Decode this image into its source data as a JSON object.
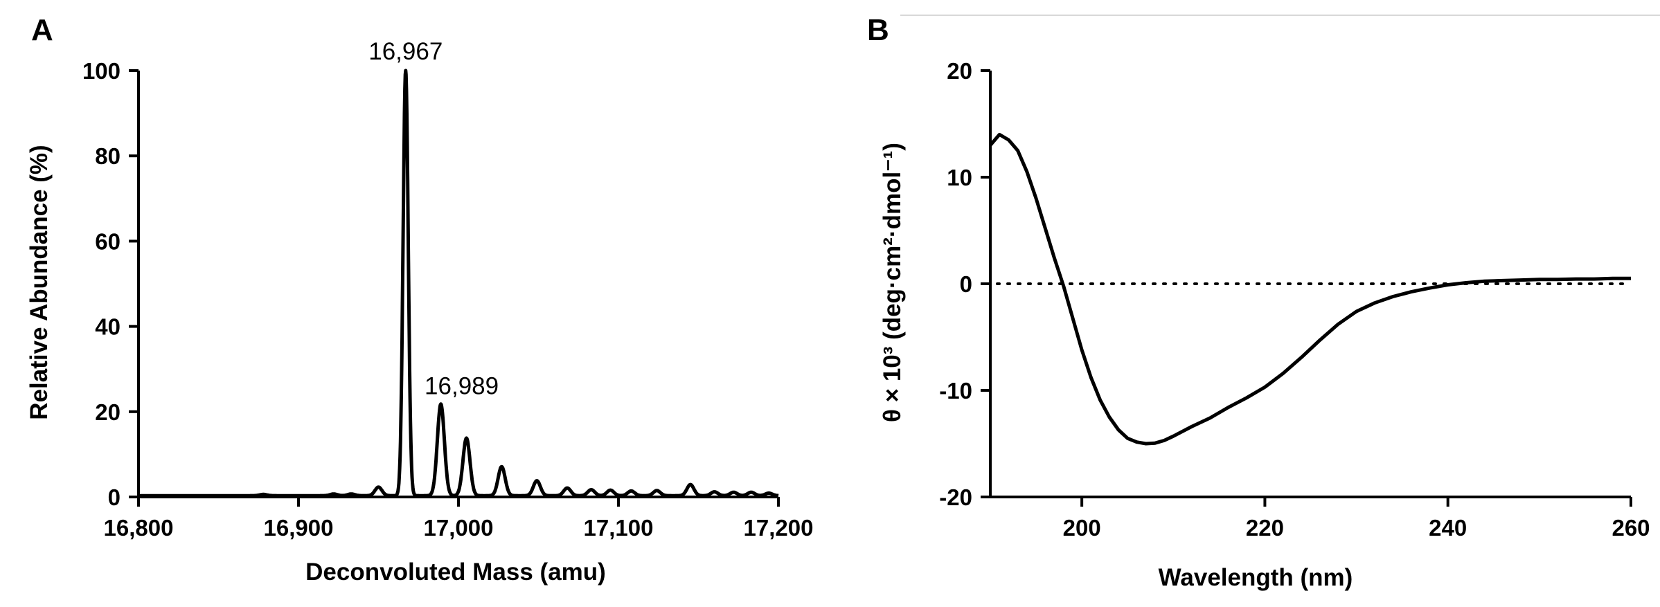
{
  "chart_data": [
    {
      "type": "line",
      "panel": "A",
      "title": "",
      "xlabel": "Deconvoluted Mass (amu)",
      "ylabel": "Relative Abundance (%)",
      "xlim": [
        16800,
        17200
      ],
      "ylim": [
        0,
        100
      ],
      "x_ticks": [
        16800,
        16900,
        17000,
        17100,
        17200
      ],
      "x_tick_labels": [
        "16,800",
        "16,900",
        "17,000",
        "17,100",
        "17,200"
      ],
      "y_ticks": [
        0,
        20,
        40,
        60,
        80,
        100
      ],
      "y_tick_labels": [
        "0",
        "20",
        "40",
        "60",
        "80",
        "100"
      ],
      "grid": false,
      "annotations": [
        {
          "text": "16,967",
          "x": 16967,
          "y": 100
        },
        {
          "text": "16,989",
          "x": 16989,
          "y": 21.5
        }
      ],
      "series": [
        {
          "name": "mass spectrum",
          "baseline": 0.3,
          "peaks": [
            {
              "mass": 16878,
              "height": 0.3
            },
            {
              "mass": 16922,
              "height": 0.4
            },
            {
              "mass": 16933,
              "height": 0.4
            },
            {
              "mass": 16950,
              "height": 2
            },
            {
              "mass": 16967,
              "height": 100
            },
            {
              "mass": 16989,
              "height": 21.5
            },
            {
              "mass": 17005,
              "height": 13.5
            },
            {
              "mass": 17027,
              "height": 6.8
            },
            {
              "mass": 17049,
              "height": 3.5
            },
            {
              "mass": 17068,
              "height": 1.8
            },
            {
              "mass": 17083,
              "height": 1.4
            },
            {
              "mass": 17095,
              "height": 1.3
            },
            {
              "mass": 17108,
              "height": 1.1
            },
            {
              "mass": 17124,
              "height": 1.2
            },
            {
              "mass": 17145,
              "height": 2.6
            },
            {
              "mass": 17160,
              "height": 0.9
            },
            {
              "mass": 17172,
              "height": 0.8
            },
            {
              "mass": 17183,
              "height": 0.8
            },
            {
              "mass": 17194,
              "height": 0.6
            }
          ]
        }
      ]
    },
    {
      "type": "line",
      "panel": "B",
      "title": "",
      "xlabel": "Wavelength (nm)",
      "ylabel": "θ × 10³ (deg·cm²·dmol⁻¹)",
      "xlim": [
        190,
        260
      ],
      "ylim": [
        -20,
        20
      ],
      "x_ticks": [
        200,
        220,
        240,
        260
      ],
      "x_tick_labels": [
        "200",
        "220",
        "240",
        "260"
      ],
      "y_ticks": [
        -20,
        -10,
        0,
        10,
        20
      ],
      "y_tick_labels": [
        "-20",
        "-10",
        "0",
        "10",
        "20"
      ],
      "grid": false,
      "reference_line": {
        "y": 0,
        "style": "dotted"
      },
      "series": [
        {
          "name": "CD spectrum",
          "x": [
            190,
            191,
            192,
            193,
            194,
            195,
            196,
            197,
            198,
            199,
            200,
            201,
            202,
            203,
            204,
            205,
            206,
            207,
            208,
            209,
            210,
            212,
            214,
            216,
            218,
            220,
            222,
            224,
            226,
            228,
            230,
            232,
            234,
            236,
            238,
            240,
            242,
            244,
            246,
            248,
            250,
            252,
            254,
            256,
            258,
            260
          ],
          "y": [
            13.0,
            14.0,
            13.5,
            12.5,
            10.5,
            8.0,
            5.2,
            2.4,
            -0.2,
            -3.2,
            -6.2,
            -8.8,
            -10.9,
            -12.5,
            -13.7,
            -14.5,
            -14.85,
            -15.0,
            -14.95,
            -14.7,
            -14.3,
            -13.4,
            -12.6,
            -11.6,
            -10.7,
            -9.7,
            -8.4,
            -6.9,
            -5.3,
            -3.8,
            -2.6,
            -1.8,
            -1.2,
            -0.75,
            -0.4,
            -0.1,
            0.1,
            0.25,
            0.3,
            0.35,
            0.4,
            0.4,
            0.45,
            0.45,
            0.5,
            0.5
          ]
        }
      ]
    }
  ]
}
